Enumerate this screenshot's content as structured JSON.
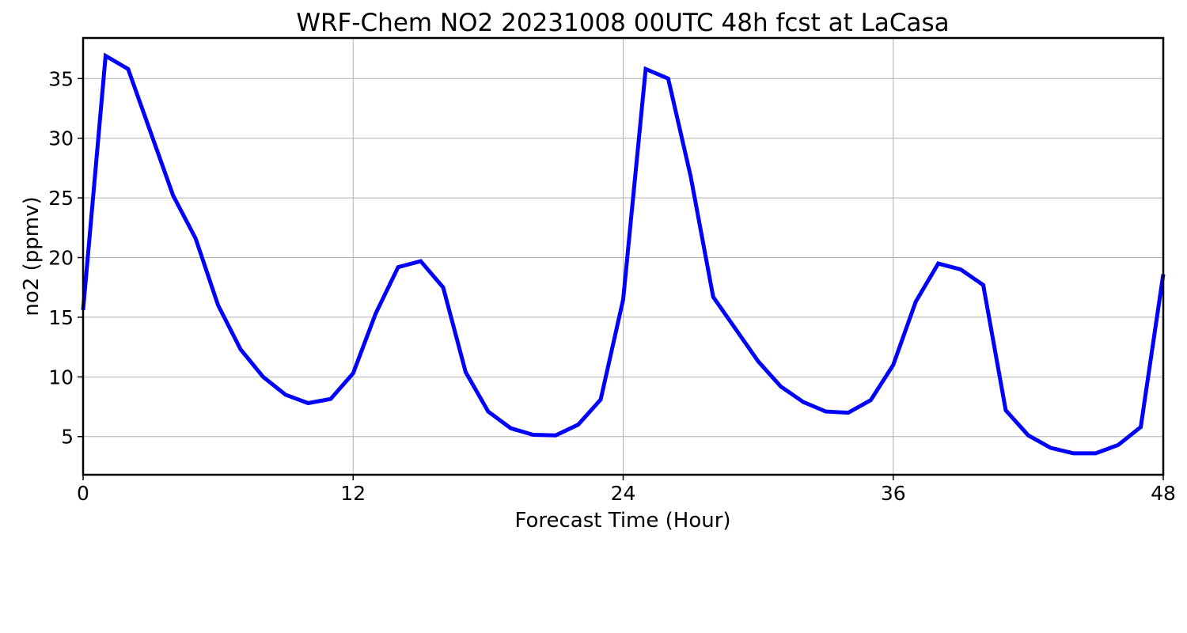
{
  "chart_data": {
    "type": "line",
    "title": "WRF-Chem NO2  20231008 00UTC 48h fcst at LaCasa",
    "xlabel": "Forecast Time (Hour)",
    "ylabel": "no2  (ppmv)",
    "xlim": [
      0,
      48
    ],
    "ylim": [
      1.8,
      38.4
    ],
    "xticks": [
      0,
      12,
      24,
      36,
      48
    ],
    "yticks": [
      5,
      10,
      15,
      20,
      25,
      30,
      35
    ],
    "grid": true,
    "line_color": "#0000ff",
    "series": [
      {
        "x": [
          0,
          1,
          2,
          3,
          4,
          5,
          6,
          7,
          8,
          9,
          10,
          11,
          12,
          13,
          14,
          15,
          16,
          17,
          18,
          19,
          20,
          21,
          22,
          23,
          24,
          25,
          26,
          27,
          28,
          29,
          30,
          31,
          32,
          33,
          34,
          35,
          36,
          37,
          38,
          39,
          40,
          41,
          42,
          43,
          44,
          45,
          46,
          47,
          48
        ],
        "values": [
          15.6,
          36.9,
          35.8,
          30.5,
          25.2,
          21.6,
          16.0,
          12.3,
          10.0,
          8.5,
          7.8,
          8.15,
          10.3,
          15.3,
          19.2,
          19.7,
          17.5,
          10.4,
          7.1,
          5.7,
          5.15,
          5.1,
          6.0,
          8.1,
          16.5,
          35.8,
          35.0,
          26.8,
          16.7,
          14.0,
          11.3,
          9.2,
          7.9,
          7.1,
          7.0,
          8.05,
          11.0,
          16.3,
          19.5,
          19.0,
          17.7,
          7.2,
          5.1,
          4.05,
          3.6,
          3.6,
          4.3,
          5.8,
          18.6
        ]
      }
    ]
  }
}
